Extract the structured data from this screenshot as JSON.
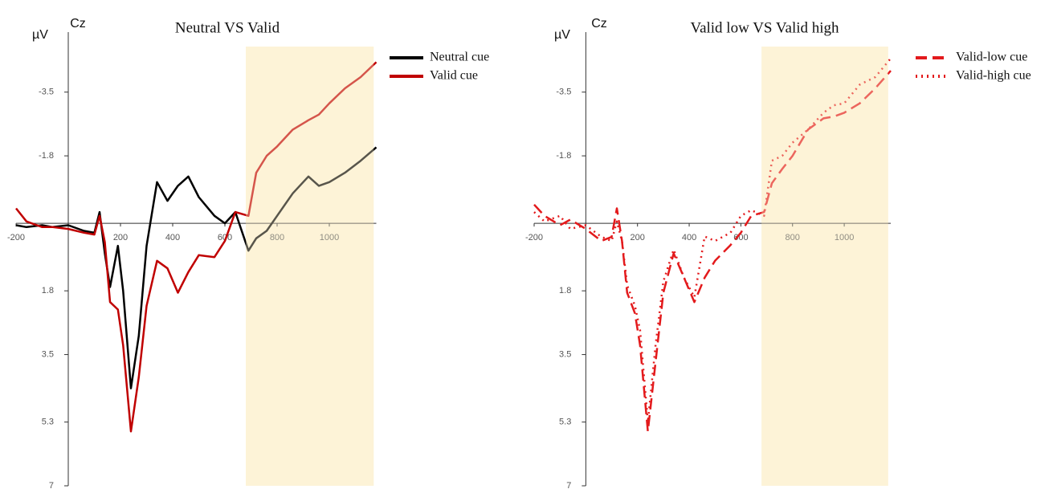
{
  "chart_data": [
    {
      "type": "line",
      "title": "Neutral VS Valid",
      "y_label": "µV",
      "electrode": "Cz",
      "x": [
        -200,
        -160,
        -100,
        -60,
        0,
        60,
        100,
        120,
        140,
        160,
        190,
        210,
        240,
        270,
        300,
        340,
        380,
        420,
        460,
        500,
        560,
        600,
        640,
        690,
        720,
        760,
        800,
        860,
        920,
        960,
        1000,
        1060,
        1120,
        1180
      ],
      "series": [
        {
          "name": "Neutral cue",
          "color": "#000000",
          "dash": "solid",
          "values": [
            0.05,
            0.1,
            0.05,
            0.1,
            0.05,
            0.2,
            0.25,
            -0.3,
            0.8,
            1.7,
            0.6,
            1.8,
            4.4,
            3.0,
            0.6,
            -1.1,
            -0.6,
            -1.0,
            -1.25,
            -0.7,
            -0.2,
            0,
            -0.3,
            0.73,
            0.4,
            0.2,
            -0.2,
            -0.8,
            -1.25,
            -1.0,
            -1.1,
            -1.35,
            -1.67,
            -2.03
          ]
        },
        {
          "name": "Valid cue",
          "color": "#c00000",
          "dash": "solid",
          "values": [
            -0.4,
            -0.05,
            0.1,
            0.1,
            0.15,
            0.25,
            0.3,
            -0.2,
            0.5,
            2.1,
            2.3,
            3.25,
            5.55,
            4.1,
            2.2,
            1.0,
            1.2,
            1.85,
            1.3,
            0.85,
            0.9,
            0.47,
            -0.3,
            -0.2,
            -1.35,
            -1.8,
            -2.05,
            -2.5,
            -2.75,
            -2.9,
            -3.2,
            -3.6,
            -3.9,
            -4.3
          ]
        }
      ],
      "xlim": [
        -200,
        1180
      ],
      "xticks": [
        -200,
        200,
        400,
        600,
        800,
        1000
      ],
      "ylim": [
        -5.1,
        7
      ],
      "y_inverted": true,
      "yticks": [
        -3.5,
        -1.8,
        1.8,
        3.5,
        5.3,
        7
      ],
      "highlight": [
        680,
        1170
      ],
      "highlight_color": "#fdf3d7"
    },
    {
      "type": "line",
      "title": "Valid low VS Valid high",
      "y_label": "µV",
      "electrode": "Cz",
      "x": [
        -200,
        -160,
        -100,
        -60,
        0,
        60,
        100,
        120,
        140,
        160,
        190,
        210,
        240,
        270,
        300,
        340,
        380,
        420,
        460,
        500,
        560,
        600,
        640,
        690,
        720,
        760,
        800,
        860,
        920,
        960,
        1000,
        1060,
        1120,
        1180
      ],
      "series": [
        {
          "name": "Valid-low cue",
          "color": "#e31a1c",
          "dash": "dashed",
          "values": [
            -0.5,
            -0.2,
            0.05,
            -0.1,
            0.15,
            0.47,
            0.36,
            -0.4,
            0.47,
            1.85,
            2.4,
            3.25,
            5.55,
            3.7,
            1.85,
            0.8,
            1.45,
            2.1,
            1.45,
            1.0,
            0.58,
            0.25,
            -0.2,
            -0.3,
            -1.07,
            -1.45,
            -1.8,
            -2.5,
            -2.8,
            -2.85,
            -2.95,
            -3.2,
            -3.6,
            -4.07
          ]
        },
        {
          "name": "Valid-high cue",
          "color": "#e31a1c",
          "dash": "dotted",
          "values": [
            -0.3,
            -0.05,
            -0.2,
            0.15,
            0.05,
            0.36,
            0.47,
            -0.05,
            0.47,
            1.65,
            2.2,
            2.85,
            5.3,
            3.25,
            1.55,
            0.7,
            1.45,
            1.97,
            0.35,
            0.47,
            0.25,
            -0.2,
            -0.35,
            -0.2,
            -1.67,
            -1.8,
            -2.15,
            -2.5,
            -2.95,
            -3.15,
            -3.2,
            -3.7,
            -3.9,
            -4.4
          ]
        }
      ],
      "xlim": [
        -200,
        1180
      ],
      "xticks": [
        -200,
        200,
        400,
        600,
        800,
        1000
      ],
      "ylim": [
        -5.1,
        7
      ],
      "y_inverted": true,
      "yticks": [
        -3.5,
        -1.8,
        1.8,
        3.5,
        5.3,
        7
      ],
      "highlight": [
        680,
        1170
      ],
      "highlight_color": "#fdf3d7"
    }
  ]
}
